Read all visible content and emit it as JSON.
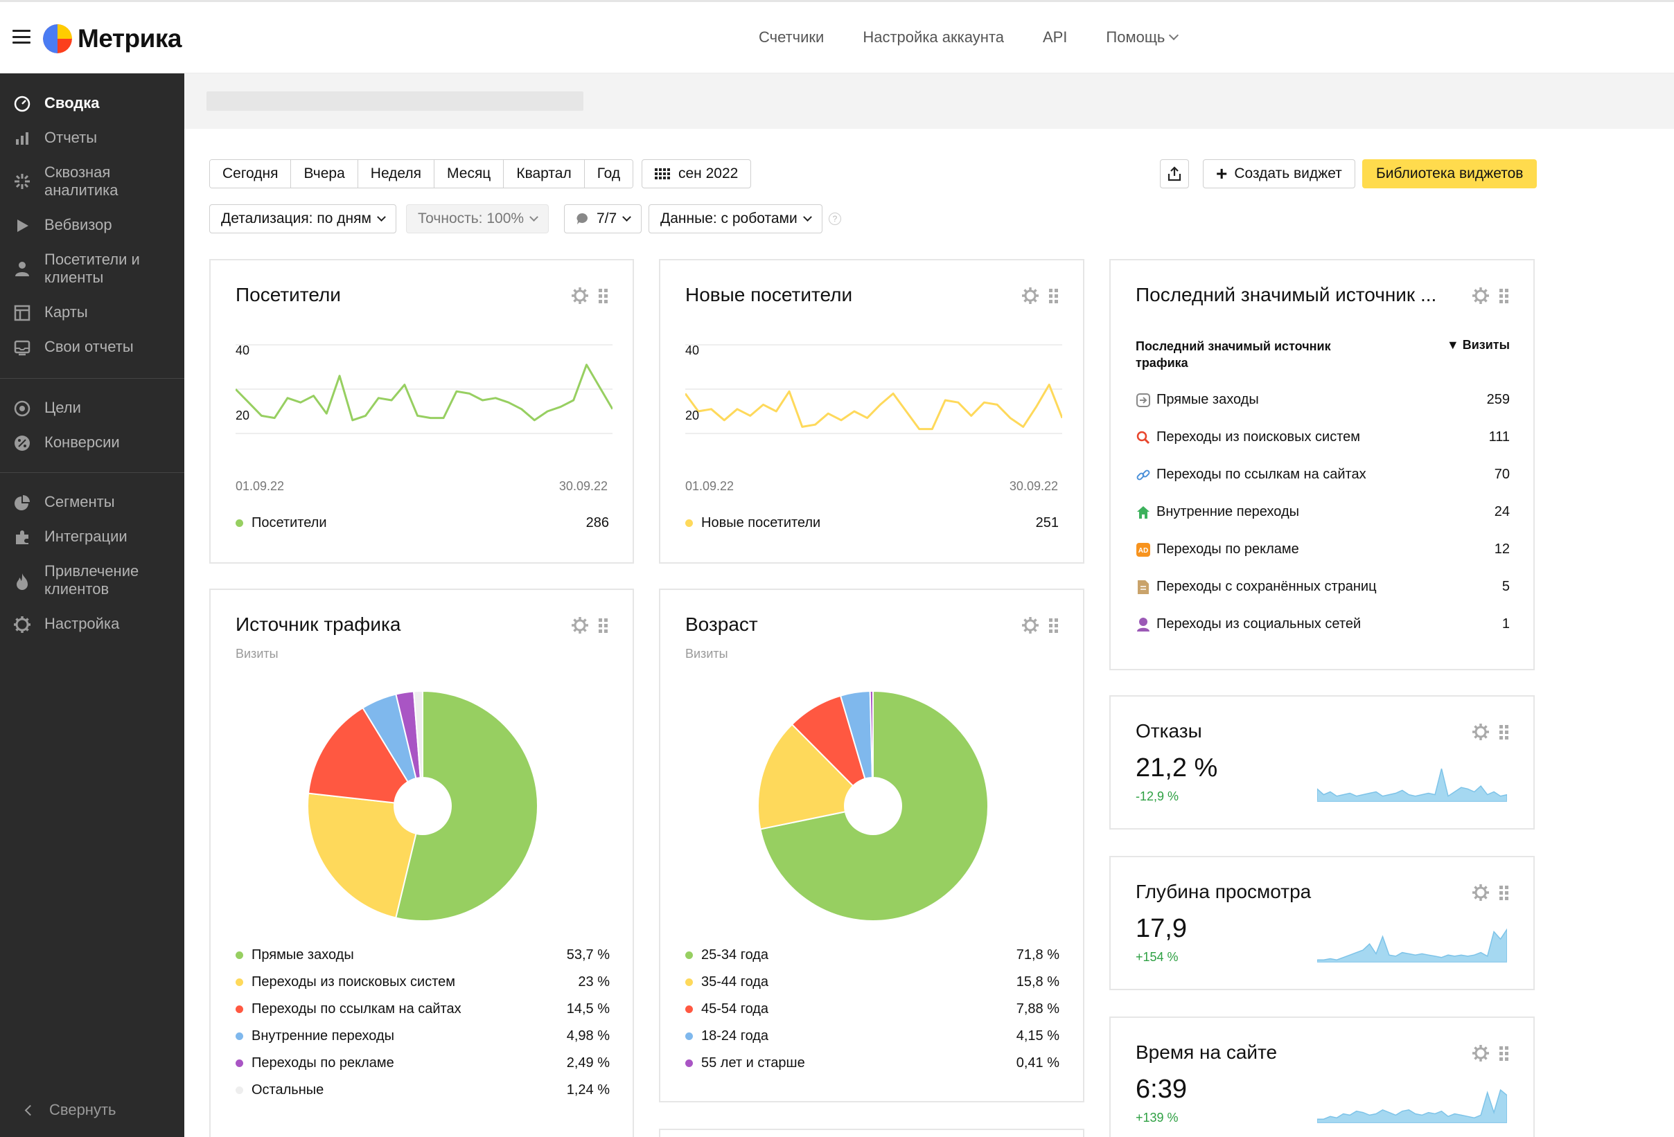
{
  "app": {
    "title": "Метрика"
  },
  "topnav": [
    "Счетчики",
    "Настройка аккаунта",
    "API",
    "Помощь"
  ],
  "sidebar": {
    "items": [
      {
        "label": "Сводка",
        "icon": "dashboard-icon",
        "active": true
      },
      {
        "label": "Отчеты",
        "icon": "bar-chart-icon"
      },
      {
        "label": "Сквозная аналитика",
        "icon": "sparkle-icon"
      },
      {
        "label": "Вебвизор",
        "icon": "play-icon"
      },
      {
        "label": "Посетители и клиенты",
        "icon": "person-icon"
      },
      {
        "label": "Карты",
        "icon": "map-icon"
      },
      {
        "label": "Свои отчеты",
        "icon": "inbox-icon"
      },
      {
        "label": "Цели",
        "icon": "target-icon"
      },
      {
        "label": "Конверсии",
        "icon": "percent-icon"
      },
      {
        "label": "Сегменты",
        "icon": "pie-icon"
      },
      {
        "label": "Интеграции",
        "icon": "puzzle-icon"
      },
      {
        "label": "Привлечение клиентов",
        "icon": "fire-icon"
      },
      {
        "label": "Настройка",
        "icon": "gear-icon"
      }
    ],
    "collapse": "Свернуть"
  },
  "toolbar": {
    "periods": [
      "Сегодня",
      "Вчера",
      "Неделя",
      "Месяц",
      "Квартал",
      "Год"
    ],
    "date": "сен 2022",
    "create_widget": "Создать виджет",
    "library": "Библиотека виджетов",
    "detail": "Детализация: по дням",
    "accuracy": "Точность: 100%",
    "segments": "7/7",
    "data": "Данные: с роботами",
    "help": "?"
  },
  "colors": {
    "green": "#97cf61",
    "yellow": "#fed95b",
    "red": "#ff5841",
    "blue": "#7fb8ed",
    "purple": "#a955c4",
    "gray": "#eeeeee",
    "area": "#a5d8f1"
  },
  "widgets": {
    "visitors": {
      "title": "Посетители",
      "y_ticks": [
        "40",
        "20"
      ],
      "x_start": "01.09.22",
      "x_end": "30.09.22",
      "legend": "Посетители",
      "total": "286"
    },
    "new_visitors": {
      "title": "Новые посетители",
      "y_ticks": [
        "40",
        "20"
      ],
      "x_start": "01.09.22",
      "x_end": "30.09.22",
      "legend": "Новые посетители",
      "total": "251"
    },
    "last_source": {
      "title": "Последний значимый источник ...",
      "col_name": "Последний значимый источник трафика",
      "col_metric": "▼ Визиты",
      "rows": [
        {
          "name": "Прямые заходы",
          "value": "259",
          "icon": "direct-entry-icon"
        },
        {
          "name": "Переходы из поисковых систем",
          "value": "111",
          "icon": "search-icon"
        },
        {
          "name": "Переходы по ссылкам на сайтах",
          "value": "70",
          "icon": "link-icon"
        },
        {
          "name": "Внутренние переходы",
          "value": "24",
          "icon": "home-icon"
        },
        {
          "name": "Переходы по рекламе",
          "value": "12",
          "icon": "ad-icon"
        },
        {
          "name": "Переходы с сохранённых страниц",
          "value": "5",
          "icon": "saved-page-icon"
        },
        {
          "name": "Переходы из социальных сетей",
          "value": "1",
          "icon": "social-icon"
        }
      ]
    },
    "traffic": {
      "title": "Источник трафика",
      "subtitle": "Визиты",
      "legend": [
        {
          "name": "Прямые заходы",
          "value": "53,7 %"
        },
        {
          "name": "Переходы из поисковых систем",
          "value": "23 %"
        },
        {
          "name": "Переходы по ссылкам на сайтах",
          "value": "14,5 %"
        },
        {
          "name": "Внутренние переходы",
          "value": "4,98 %"
        },
        {
          "name": "Переходы по рекламе",
          "value": "2,49 %"
        },
        {
          "name": "Остальные",
          "value": "1,24 %"
        }
      ]
    },
    "age": {
      "title": "Возраст",
      "subtitle": "Визиты",
      "legend": [
        {
          "name": "25-34 года",
          "value": "71,8 %"
        },
        {
          "name": "35-44 года",
          "value": "15,8 %"
        },
        {
          "name": "45-54 года",
          "value": "7,88 %"
        },
        {
          "name": "18-24 года",
          "value": "4,15 %"
        },
        {
          "name": "55 лет и старше",
          "value": "0,41 %"
        }
      ]
    },
    "bounce": {
      "title": "Отказы",
      "value": "21,2 %",
      "delta": "-12,9 %"
    },
    "depth": {
      "title": "Глубина просмотра",
      "value": "17,9",
      "delta": "+154 %"
    },
    "time": {
      "title": "Время на сайте",
      "value": "6:39",
      "delta": "+139 %"
    }
  },
  "chart_data": [
    {
      "type": "line",
      "title": "Посетители",
      "x_start": "01.09.22",
      "x_end": "30.09.22",
      "ylim": [
        0,
        40
      ],
      "series": [
        {
          "name": "Посетители",
          "values": [
            20,
            14,
            8,
            7,
            16,
            14,
            17,
            9,
            26,
            6,
            8,
            16,
            15,
            22,
            8,
            7,
            7,
            19,
            18,
            15,
            16,
            14,
            11,
            6,
            10,
            12,
            15,
            31,
            21,
            11
          ]
        }
      ]
    },
    {
      "type": "line",
      "title": "Новые посетители",
      "x_start": "01.09.22",
      "x_end": "30.09.22",
      "ylim": [
        0,
        40
      ],
      "series": [
        {
          "name": "Новые посетители",
          "values": [
            18,
            10,
            11,
            6,
            11,
            8,
            13,
            10,
            19,
            3,
            4,
            9,
            6,
            10,
            7,
            13,
            18,
            10,
            2,
            2,
            15,
            14,
            8,
            14,
            13,
            7,
            3,
            12,
            22,
            7
          ]
        }
      ]
    },
    {
      "type": "pie",
      "title": "Источник трафика",
      "categories": [
        "Прямые заходы",
        "Переходы из поисковых систем",
        "Переходы по ссылкам на сайтах",
        "Внутренние переходы",
        "Переходы по рекламе",
        "Остальные"
      ],
      "values": [
        53.7,
        23,
        14.5,
        4.98,
        2.49,
        1.24
      ]
    },
    {
      "type": "pie",
      "title": "Возраст",
      "categories": [
        "25-34 года",
        "35-44 года",
        "45-54 года",
        "18-24 года",
        "55 лет и старше"
      ],
      "values": [
        71.8,
        15.8,
        7.88,
        4.15,
        0.41
      ]
    },
    {
      "type": "area",
      "title": "Отказы",
      "values": [
        8,
        4,
        6,
        3,
        4,
        5,
        3,
        4,
        5,
        6,
        3,
        4,
        5,
        7,
        4,
        3,
        4,
        5,
        4,
        22,
        3,
        6,
        9,
        8,
        6,
        10,
        4,
        6,
        3,
        4
      ]
    },
    {
      "type": "area",
      "title": "Глубина просмотра",
      "values": [
        1,
        1,
        2,
        1,
        3,
        5,
        7,
        9,
        14,
        6,
        20,
        5,
        4,
        7,
        6,
        5,
        6,
        5,
        4,
        3,
        5,
        4,
        5,
        4,
        5,
        7,
        4,
        24,
        18,
        26
      ]
    },
    {
      "type": "area",
      "title": "Время на сайте",
      "values": [
        2,
        2,
        4,
        3,
        6,
        5,
        8,
        7,
        5,
        6,
        9,
        7,
        5,
        8,
        9,
        6,
        5,
        7,
        6,
        8,
        4,
        6,
        5,
        4,
        3,
        5,
        22,
        7,
        24,
        20
      ]
    }
  ]
}
